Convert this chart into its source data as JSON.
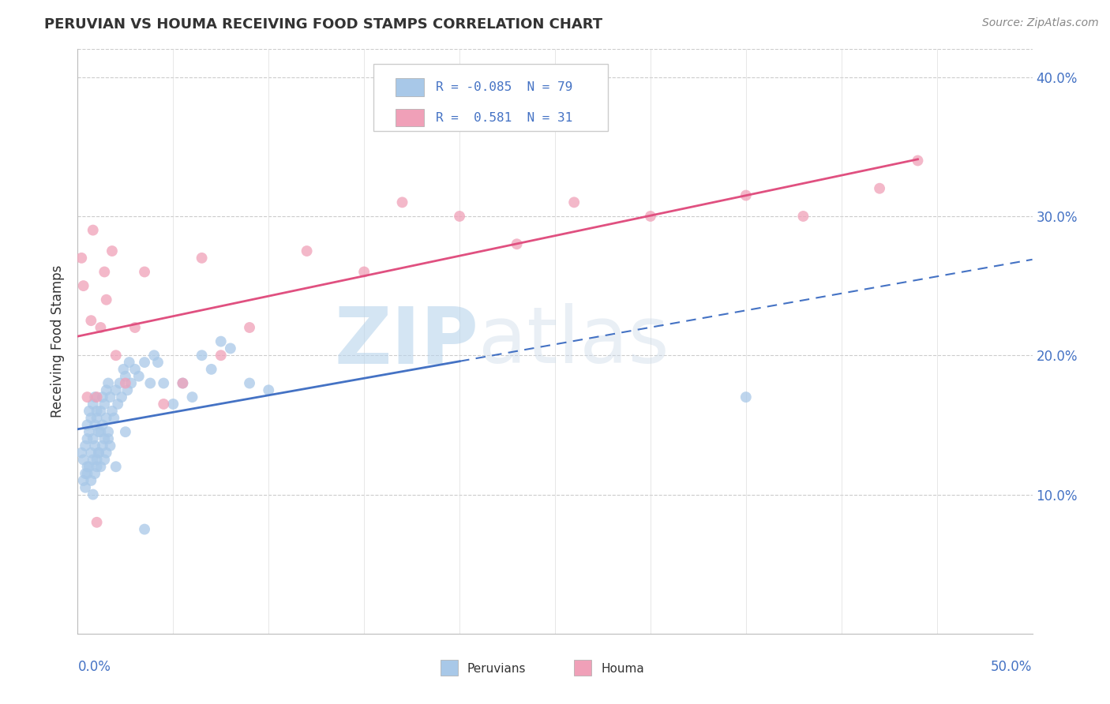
{
  "title": "PERUVIAN VS HOUMA RECEIVING FOOD STAMPS CORRELATION CHART",
  "source": "Source: ZipAtlas.com",
  "ylabel": "Receiving Food Stamps",
  "xlim": [
    0.0,
    50.0
  ],
  "ylim": [
    0.0,
    42.0
  ],
  "yticks": [
    10.0,
    20.0,
    30.0,
    40.0
  ],
  "xticks": [
    0.0,
    5.0,
    10.0,
    15.0,
    20.0,
    25.0,
    30.0,
    35.0,
    40.0,
    45.0,
    50.0
  ],
  "peruvian_color": "#A8C8E8",
  "houma_color": "#F0A0B8",
  "peruvian_line_color": "#4472C4",
  "houma_line_color": "#E05080",
  "R_peruvian": -0.085,
  "N_peruvian": 79,
  "R_houma": 0.581,
  "N_houma": 31,
  "watermark_zip": "ZIP",
  "watermark_atlas": "atlas",
  "peruvian_x": [
    0.2,
    0.3,
    0.4,
    0.4,
    0.5,
    0.5,
    0.5,
    0.6,
    0.6,
    0.7,
    0.7,
    0.8,
    0.8,
    0.8,
    0.9,
    0.9,
    0.9,
    1.0,
    1.0,
    1.0,
    1.1,
    1.1,
    1.2,
    1.2,
    1.3,
    1.3,
    1.4,
    1.4,
    1.5,
    1.5,
    1.6,
    1.6,
    1.7,
    1.8,
    1.9,
    2.0,
    2.1,
    2.2,
    2.3,
    2.4,
    2.5,
    2.6,
    2.7,
    2.8,
    3.0,
    3.2,
    3.5,
    3.8,
    4.0,
    4.2,
    4.5,
    5.0,
    5.5,
    6.0,
    6.5,
    7.0,
    7.5,
    8.0,
    9.0,
    10.0,
    0.3,
    0.4,
    0.5,
    0.6,
    0.7,
    0.8,
    0.9,
    1.0,
    1.1,
    1.2,
    1.3,
    1.4,
    1.5,
    1.6,
    1.7,
    2.0,
    2.5,
    3.5,
    35.0
  ],
  "peruvian_y": [
    13.0,
    12.5,
    13.5,
    11.5,
    14.0,
    12.0,
    15.0,
    14.5,
    16.0,
    15.5,
    13.0,
    16.5,
    14.0,
    12.5,
    15.0,
    17.0,
    13.5,
    15.5,
    12.0,
    16.0,
    14.5,
    13.0,
    16.0,
    14.5,
    17.0,
    15.0,
    16.5,
    14.0,
    17.5,
    15.5,
    18.0,
    14.5,
    17.0,
    16.0,
    15.5,
    17.5,
    16.5,
    18.0,
    17.0,
    19.0,
    18.5,
    17.5,
    19.5,
    18.0,
    19.0,
    18.5,
    19.5,
    18.0,
    20.0,
    19.5,
    18.0,
    16.5,
    18.0,
    17.0,
    20.0,
    19.0,
    21.0,
    20.5,
    18.0,
    17.5,
    11.0,
    10.5,
    11.5,
    12.0,
    11.0,
    10.0,
    11.5,
    12.5,
    13.0,
    12.0,
    13.5,
    12.5,
    13.0,
    14.0,
    13.5,
    12.0,
    14.5,
    7.5,
    17.0
  ],
  "houma_x": [
    0.2,
    0.3,
    0.5,
    0.7,
    0.8,
    1.0,
    1.2,
    1.4,
    1.5,
    1.8,
    2.0,
    2.5,
    3.0,
    3.5,
    4.5,
    5.5,
    6.5,
    7.5,
    9.0,
    12.0,
    15.0,
    17.0,
    20.0,
    23.0,
    26.0,
    30.0,
    35.0,
    38.0,
    42.0,
    44.0,
    1.0
  ],
  "houma_y": [
    27.0,
    25.0,
    17.0,
    22.5,
    29.0,
    17.0,
    22.0,
    26.0,
    24.0,
    27.5,
    20.0,
    18.0,
    22.0,
    26.0,
    16.5,
    18.0,
    27.0,
    20.0,
    22.0,
    27.5,
    26.0,
    31.0,
    30.0,
    28.0,
    31.0,
    30.0,
    31.5,
    30.0,
    32.0,
    34.0,
    8.0
  ]
}
